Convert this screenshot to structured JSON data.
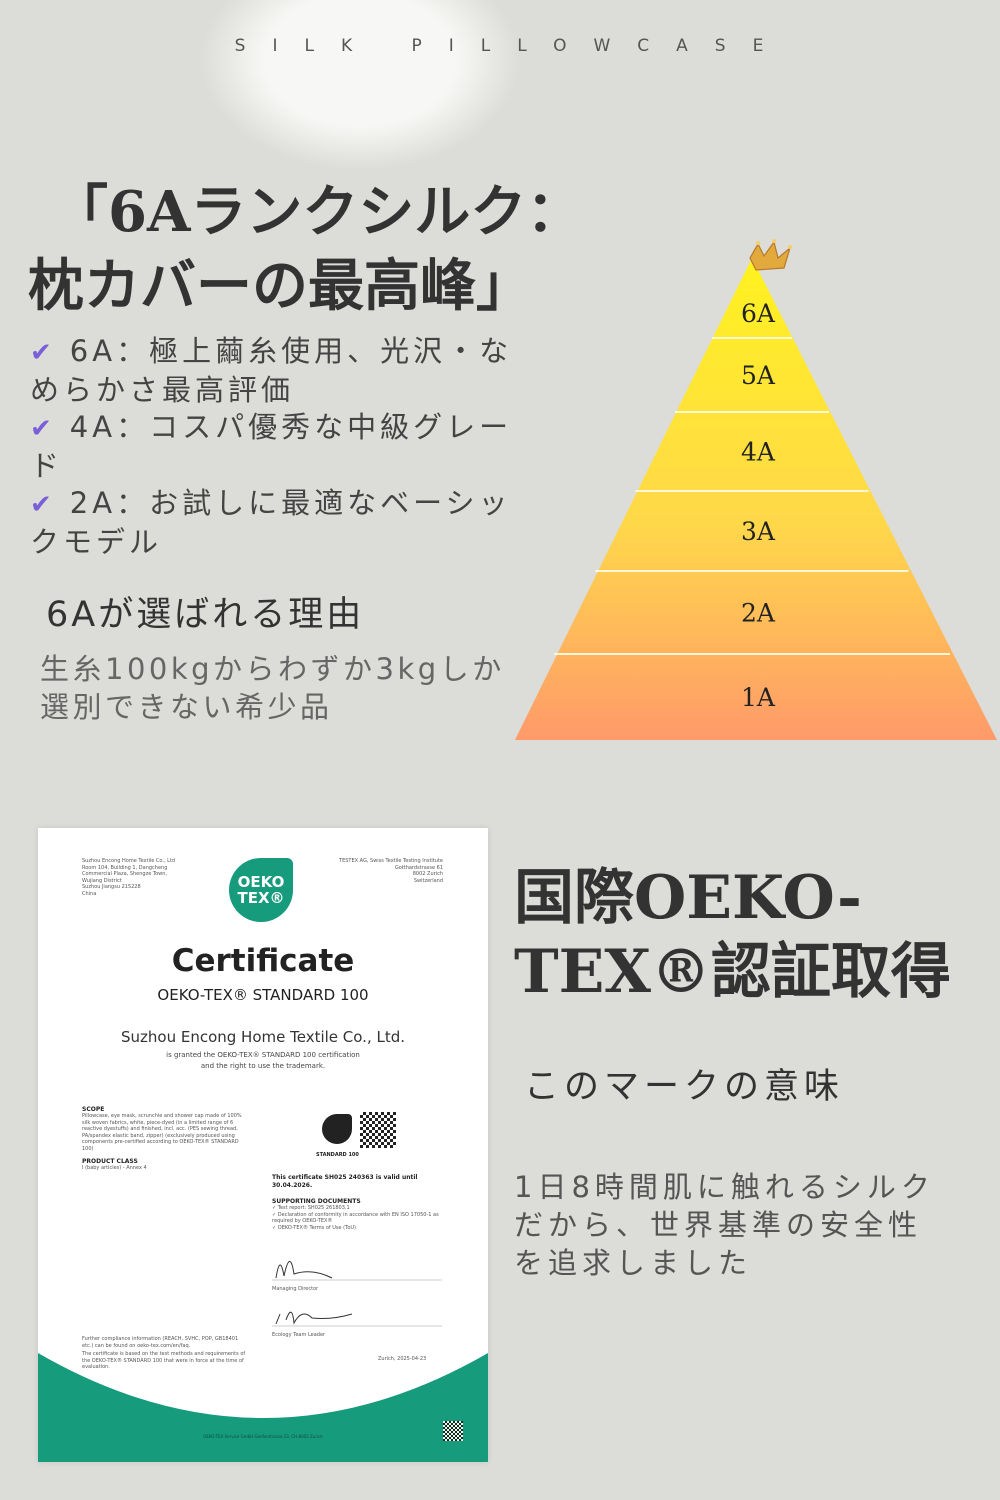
{
  "header": "SILK PILLOWCASE",
  "title": {
    "line1": "「6Aランクシルク：",
    "line2": "枕カバーの最高峰」"
  },
  "bullets": [
    {
      "icon": "check-icon",
      "text": "6A：極上繭糸使用、光沢・なめらかさ最高評価"
    },
    {
      "icon": "check-icon",
      "text": "4A：コスパ優秀な中級グレード"
    },
    {
      "icon": "check-icon",
      "text": "2A：お試しに最適なベーシックモデル"
    }
  ],
  "reason": {
    "heading": "6Aが選ばれる理由",
    "body_line1": "生糸100kgからわずか3kgしか",
    "body_line2": "選別できない希少品"
  },
  "pyramid": {
    "levels": [
      "6A",
      "5A",
      "4A",
      "3A",
      "2A",
      "1A"
    ],
    "top_icon": "crown-icon",
    "colors": {
      "top": "#fff21f",
      "bottom": "#ff9a6a"
    }
  },
  "oeko": {
    "heading_line1": "国際OEKO-",
    "heading_line2": "TEX®認証取得",
    "subheading": "このマークの意味",
    "body": [
      "1日8時間肌に触れるシルク",
      "だから、世界基準の安全性",
      "を追求しました"
    ]
  },
  "certificate": {
    "brand_color": "#169b7c",
    "logo_line1": "OEKO",
    "logo_line2": "TEX®",
    "issuer_address": [
      "Suzhou Encong Home Textile Co., Ltd",
      "Room 104, Building 1, Dangcheng",
      "Commercial Plaza, Shengze Town,",
      "Wujiang District",
      "Suzhou Jiangsu 215228",
      "China"
    ],
    "institute_address": [
      "TESTEX AG, Swiss Textile Testing Institute",
      "Gotthardstrasse 61",
      "8002 Zurich",
      "Switzerland"
    ],
    "title": "Certificate",
    "standard": "OEKO-TEX® STANDARD 100",
    "company": "Suzhou Encong Home Textile Co., Ltd.",
    "granted_line1": "is granted the OEKO-TEX® STANDARD 100 certification",
    "granted_line2": "and the right to use the trademark.",
    "scope_label": "SCOPE",
    "scope_text": "Pillowcase, eye mask, scrunchie and shower cap made of 100% silk woven fabrics, white, piece-dyed (in a limited range of 6 reactive dyestuffs) and finished, incl. acc. (PES sewing thread, PA/spandex elastic band, zipper) (exclusively produced using components pre-certified according to OEKO-TEX® STANDARD 100)",
    "class_label": "PRODUCT CLASS",
    "class_text": "I (baby articles) - Annex 4",
    "label_standard": "STANDARD 100",
    "valid_text": "This certificate SH025 240363 is valid until 30.04.2026.",
    "docs_label": "SUPPORTING DOCUMENTS",
    "docs": [
      "✓ Test report: SH025 261803.1",
      "✓ Declaration of conformity in accordance with EN ISO 17050-1 as required by OEKO-TEX®",
      "✓ OEKO-TEX® Terms of Use (ToU)"
    ],
    "signer1_title": "Managing Director",
    "signer2_title": "Ecology Team Leader",
    "footer_note1": "Further compliance information (REACH, SVHC, POP, GB18401 etc.) can be found on oeko-tex.com/en/faq.",
    "footer_note2": "The certificate is based on the test methods and requirements of the OEKO-TEX® STANDARD 100 that were in force at the time of evaluation.",
    "place_date": "Zurich, 2025-04-23",
    "service": "OEKO-TEX Service GmbH Genferstrasse 23, CH-8002 Zurich"
  }
}
